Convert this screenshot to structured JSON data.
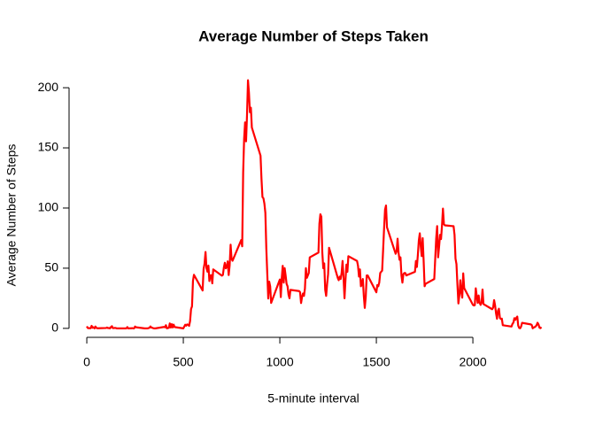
{
  "chart_data": {
    "type": "line",
    "title": "Average Number of Steps Taken",
    "x_label": "5-minute interval",
    "y_label": "Average Number of Steps",
    "x": [
      0,
      5,
      10,
      15,
      20,
      25,
      30,
      35,
      40,
      45,
      50,
      55,
      100,
      105,
      110,
      115,
      120,
      125,
      130,
      135,
      140,
      145,
      150,
      155,
      200,
      205,
      210,
      215,
      220,
      225,
      230,
      235,
      240,
      245,
      250,
      255,
      300,
      305,
      310,
      315,
      320,
      325,
      330,
      335,
      340,
      345,
      350,
      355,
      400,
      405,
      410,
      415,
      420,
      425,
      430,
      435,
      440,
      445,
      450,
      455,
      500,
      505,
      510,
      515,
      520,
      525,
      530,
      535,
      540,
      545,
      550,
      555,
      600,
      605,
      610,
      615,
      620,
      625,
      630,
      635,
      640,
      645,
      650,
      655,
      700,
      705,
      710,
      715,
      720,
      725,
      730,
      735,
      740,
      745,
      750,
      755,
      800,
      805,
      810,
      815,
      820,
      825,
      830,
      835,
      840,
      845,
      850,
      855,
      900,
      905,
      910,
      915,
      920,
      925,
      930,
      935,
      940,
      945,
      950,
      955,
      1000,
      1005,
      1010,
      1015,
      1020,
      1025,
      1030,
      1035,
      1040,
      1045,
      1050,
      1055,
      1100,
      1105,
      1110,
      1115,
      1120,
      1125,
      1130,
      1135,
      1140,
      1145,
      1150,
      1155,
      1200,
      1205,
      1210,
      1215,
      1220,
      1225,
      1230,
      1235,
      1240,
      1245,
      1250,
      1255,
      1300,
      1305,
      1310,
      1315,
      1320,
      1325,
      1330,
      1335,
      1340,
      1345,
      1350,
      1355,
      1400,
      1405,
      1410,
      1415,
      1420,
      1425,
      1430,
      1435,
      1440,
      1445,
      1450,
      1455,
      1500,
      1505,
      1510,
      1515,
      1520,
      1525,
      1530,
      1535,
      1540,
      1545,
      1550,
      1555,
      1600,
      1605,
      1610,
      1615,
      1620,
      1625,
      1630,
      1635,
      1640,
      1645,
      1650,
      1655,
      1700,
      1705,
      1710,
      1715,
      1720,
      1725,
      1730,
      1735,
      1740,
      1745,
      1750,
      1755,
      1800,
      1805,
      1810,
      1815,
      1820,
      1825,
      1830,
      1835,
      1840,
      1845,
      1850,
      1855,
      1900,
      1905,
      1910,
      1915,
      1920,
      1925,
      1930,
      1935,
      1940,
      1945,
      1950,
      1955,
      2000,
      2005,
      2010,
      2015,
      2020,
      2025,
      2030,
      2035,
      2040,
      2045,
      2050,
      2055,
      2100,
      2105,
      2110,
      2115,
      2120,
      2125,
      2130,
      2135,
      2140,
      2145,
      2150,
      2155,
      2200,
      2205,
      2210,
      2215,
      2220,
      2225,
      2230,
      2235,
      2240,
      2245,
      2250,
      2255,
      2300,
      2305,
      2310,
      2315,
      2320,
      2325,
      2330,
      2335,
      2340,
      2345,
      2350,
      2355
    ],
    "series": [
      {
        "name": "Average Number of Steps",
        "color": "#ff0000",
        "values": [
          1.7,
          0.3,
          0.1,
          0.2,
          0.1,
          2.1,
          0.5,
          0.9,
          0,
          1.5,
          0.3,
          0.1,
          0.3,
          0.7,
          0.2,
          0.3,
          0,
          1.1,
          1.8,
          0.2,
          0.2,
          0.4,
          0.3,
          0,
          0,
          0,
          1.1,
          0,
          0,
          0.1,
          0,
          0.2,
          0,
          0,
          1.5,
          0.9,
          0,
          0,
          0,
          0,
          0.2,
          0.6,
          1.6,
          0.6,
          0.5,
          0.1,
          0,
          0,
          1.2,
          0.9,
          2.6,
          0,
          0.3,
          0.4,
          4.1,
          0.7,
          3.5,
          0.8,
          3.1,
          1.1,
          0,
          1.5,
          3,
          2.2,
          3.3,
          3,
          2.1,
          6,
          16,
          18.3,
          39.5,
          44.5,
          31.5,
          49.3,
          53.8,
          63.5,
          50,
          47.1,
          52.2,
          39.3,
          44,
          44.2,
          37.4,
          49,
          43.8,
          44.4,
          50.5,
          54.5,
          49.9,
          51,
          55.7,
          44.3,
          52.3,
          69.5,
          57.8,
          56.2,
          73.4,
          68.2,
          129.4,
          157.5,
          171.2,
          155.4,
          177.3,
          206.2,
          195.9,
          179.6,
          183.4,
          167,
          143.5,
          124,
          109.1,
          108.1,
          103.7,
          96,
          66.2,
          45.2,
          24.8,
          38.8,
          35,
          21.1,
          40.6,
          26,
          42,
          52,
          38,
          50,
          44,
          37,
          35,
          28,
          25,
          32,
          31,
          30,
          21,
          26,
          29,
          27,
          33,
          50,
          42,
          44,
          46,
          59,
          63,
          87,
          94.8,
          92.8,
          63,
          50,
          54,
          32,
          27,
          37,
          45,
          67,
          42,
          40,
          43,
          41,
          46,
          56,
          42,
          25,
          40,
          53,
          47,
          60,
          56,
          52,
          43,
          49,
          35,
          37,
          41,
          27,
          17,
          26,
          44,
          44,
          30,
          36,
          35,
          38,
          46,
          47,
          48,
          65,
          82.9,
          98.7,
          102.1,
          84,
          62,
          64,
          74.5,
          63,
          57,
          59,
          44,
          38,
          45,
          46,
          46,
          44,
          47,
          56,
          51,
          61,
          73,
          79,
          68,
          60,
          75,
          56,
          35,
          37,
          41,
          58,
          74.7,
          85,
          59,
          67.8,
          77.7,
          74.2,
          85.3,
          99.5,
          86.6,
          85.6,
          84.9,
          77.8,
          58,
          53.4,
          36.3,
          20.7,
          27.4,
          40,
          30.2,
          25.5,
          45.7,
          33.5,
          19.6,
          19,
          19.3,
          33.3,
          26.8,
          21.2,
          27.3,
          21.3,
          19.5,
          21.3,
          32.3,
          20.2,
          15.9,
          17.2,
          23.5,
          19.2,
          12.5,
          8,
          14.7,
          16.3,
          8.7,
          7.8,
          8.1,
          2.6,
          1.5,
          3.7,
          4.8,
          8.5,
          7.1,
          8.7,
          9.8,
          2.2,
          0.3,
          0.1,
          1.6,
          4.6,
          3.3,
          2.8,
          0,
          0.8,
          1,
          1.6,
          2.6,
          4.7,
          3.3,
          0.6,
          0.2,
          1.1
        ]
      }
    ],
    "xlim": [
      -94.2,
      2449.2
    ],
    "ylim": [
      -8.2,
      214.4
    ],
    "xticks": [
      0,
      500,
      1000,
      1500,
      2000
    ],
    "yticks": [
      0,
      50,
      100,
      150,
      200
    ],
    "grid": false
  }
}
